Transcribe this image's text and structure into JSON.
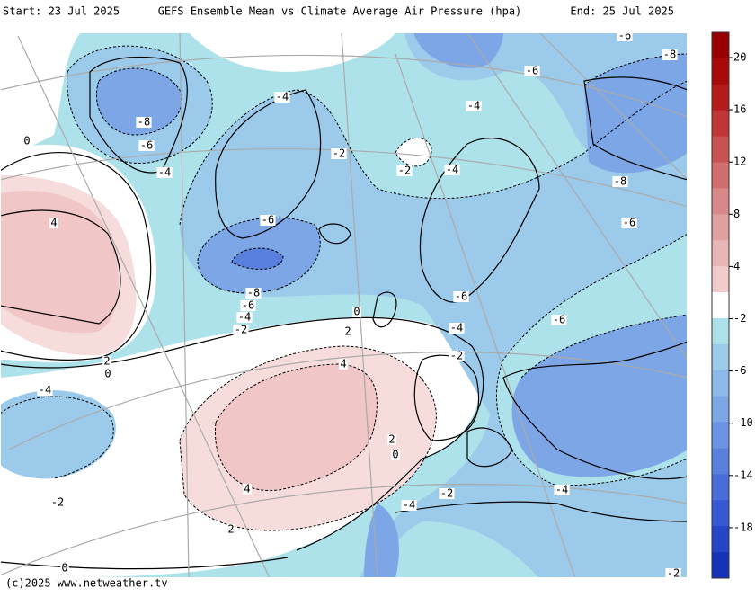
{
  "header": {
    "start": "Start: 23 Jul 2025",
    "title": "GEFS Ensemble Mean vs Climate Average Air Pressure (hpa)",
    "end": "End: 25 Jul 2025"
  },
  "footer": {
    "credit": "(c)2025 www.netweather.tv"
  },
  "colorbar": {
    "ticks": [
      20,
      16,
      12,
      8,
      4,
      -2,
      -6,
      -10,
      -14,
      -18
    ],
    "colors": [
      "#990000",
      "#a80a0a",
      "#b41c1c",
      "#c03636",
      "#c85252",
      "#d06e6e",
      "#d88888",
      "#e0a0a0",
      "#e8b6b6",
      "#f2cccc",
      "#ffffff",
      "#aee2ea",
      "#9ccaea",
      "#8cb8ea",
      "#7ca6e6",
      "#6c94e2",
      "#5a80de",
      "#486cd8",
      "#3658d2",
      "#2646c8",
      "#1632b8"
    ]
  },
  "contour_labels": [
    -6,
    -8,
    -6,
    -4,
    -4,
    -8,
    -6,
    -4,
    -2,
    -2,
    -4,
    -8,
    -6,
    -6,
    4,
    -8,
    -6,
    -4,
    -2,
    0,
    -6,
    -4,
    -6,
    2,
    2,
    0,
    -2,
    4,
    -4,
    2,
    0,
    4,
    -2,
    -4,
    -4,
    -2,
    2,
    0,
    -2,
    0
  ]
}
